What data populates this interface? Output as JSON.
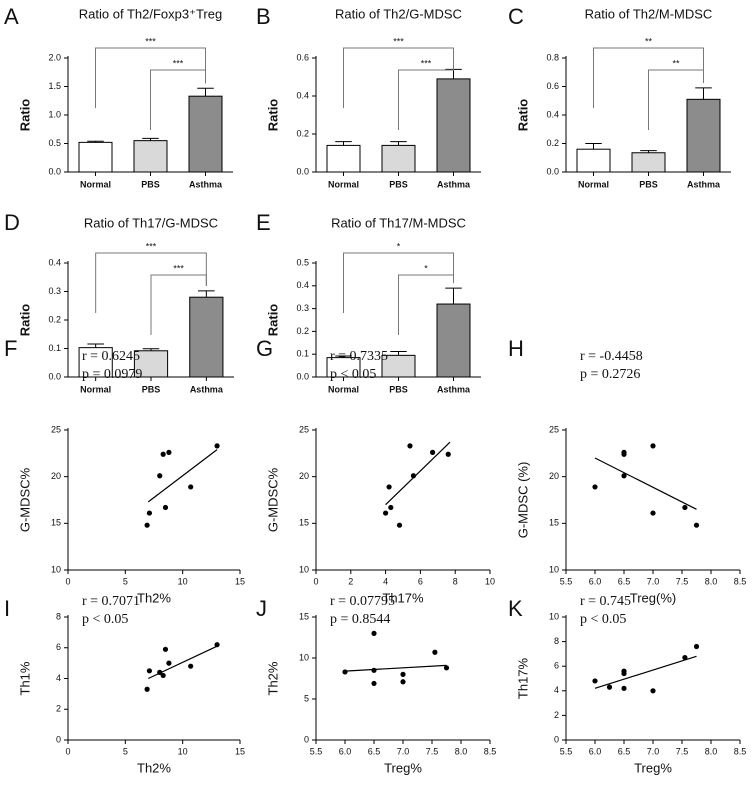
{
  "chart_data": [
    {
      "type": "bar",
      "panel": "A",
      "title": "Ratio of Th2/Foxp3⁺Treg",
      "ylabel": "Ratio",
      "categories": [
        "Normal",
        "PBS",
        "Asthma"
      ],
      "values": [
        0.52,
        0.55,
        1.33
      ],
      "errors": [
        0.02,
        0.04,
        0.14
      ],
      "colors": [
        "#ffffff",
        "#d9d9d9",
        "#8c8c8c"
      ],
      "ylim": [
        0,
        2
      ],
      "yticks": [
        {
          "value": 0,
          "label": "0.0"
        },
        0.5,
        {
          "value": 1,
          "label": "1.0"
        },
        1.5,
        {
          "value": 2,
          "label": "2.0"
        }
      ],
      "significance": [
        {
          "from": 0,
          "to": 2,
          "label": "***"
        },
        {
          "from": 1,
          "to": 2,
          "label": "***"
        }
      ]
    },
    {
      "type": "bar",
      "panel": "B",
      "title": "Ratio of Th2/G-MDSC",
      "ylabel": "Ratio",
      "categories": [
        "Normal",
        "PBS",
        "Asthma"
      ],
      "values": [
        0.14,
        0.14,
        0.49
      ],
      "errors": [
        0.02,
        0.02,
        0.05
      ],
      "colors": [
        "#ffffff",
        "#d9d9d9",
        "#8c8c8c"
      ],
      "ylim": [
        0,
        0.6
      ],
      "yticks": [
        {
          "value": 0,
          "label": "0.0"
        },
        0.2,
        0.4,
        0.6
      ],
      "significance": [
        {
          "from": 0,
          "to": 2,
          "label": "***"
        },
        {
          "from": 1,
          "to": 2,
          "label": "***"
        }
      ]
    },
    {
      "type": "bar",
      "panel": "C",
      "title": "Ratio of Th2/M-MDSC",
      "ylabel": "Ratio",
      "categories": [
        "Normal",
        "PBS",
        "Asthma"
      ],
      "values": [
        0.16,
        0.135,
        0.51
      ],
      "errors": [
        0.04,
        0.015,
        0.08
      ],
      "colors": [
        "#ffffff",
        "#d9d9d9",
        "#8c8c8c"
      ],
      "ylim": [
        0,
        0.8
      ],
      "yticks": [
        {
          "value": 0,
          "label": "0.0"
        },
        0.2,
        0.4,
        0.6,
        0.8
      ],
      "significance": [
        {
          "from": 0,
          "to": 2,
          "label": "**"
        },
        {
          "from": 1,
          "to": 2,
          "label": "**"
        }
      ]
    },
    {
      "type": "bar",
      "panel": "D",
      "title": "Ratio of Th17/G-MDSC",
      "ylabel": "Ratio",
      "categories": [
        "Normal",
        "PBS",
        "Asthma"
      ],
      "values": [
        0.103,
        0.092,
        0.28
      ],
      "errors": [
        0.013,
        0.007,
        0.022
      ],
      "colors": [
        "#ffffff",
        "#d9d9d9",
        "#8c8c8c"
      ],
      "ylim": [
        0,
        0.4
      ],
      "yticks": [
        {
          "value": 0,
          "label": "0.0"
        },
        0.1,
        0.2,
        0.3,
        0.4
      ],
      "significance": [
        {
          "from": 0,
          "to": 2,
          "label": "***"
        },
        {
          "from": 1,
          "to": 2,
          "label": "***"
        }
      ]
    },
    {
      "type": "bar",
      "panel": "E",
      "title": "Ratio of Th17/M-MDSC",
      "ylabel": "Ratio",
      "categories": [
        "Normal",
        "PBS",
        "Asthma"
      ],
      "values": [
        0.085,
        0.095,
        0.32
      ],
      "errors": [
        0.007,
        0.017,
        0.07
      ],
      "colors": [
        "#ffffff",
        "#d9d9d9",
        "#8c8c8c"
      ],
      "ylim": [
        0,
        0.5
      ],
      "yticks": [
        {
          "value": 0,
          "label": "0.0"
        },
        0.1,
        0.2,
        0.3,
        0.4,
        0.5
      ],
      "significance": [
        {
          "from": 0,
          "to": 2,
          "label": "*"
        },
        {
          "from": 1,
          "to": 2,
          "label": "*"
        }
      ]
    },
    {
      "type": "scatter",
      "panel": "F",
      "xlabel": "Th2%",
      "ylabel": "G-MDSC%",
      "annotations": [
        "r = 0.6245",
        "p = 0.0979"
      ],
      "x": [
        6.9,
        7.1,
        8.0,
        8.3,
        8.8,
        8.5,
        10.7,
        13.0
      ],
      "values": [
        14.8,
        16.1,
        20.1,
        22.4,
        22.6,
        16.7,
        18.9,
        23.3
      ],
      "fit": {
        "x": [
          7,
          13
        ],
        "values": [
          17.3,
          22.9
        ]
      },
      "color": "#000000",
      "xlim": [
        0,
        15
      ],
      "xticks": [
        0,
        5,
        10,
        15
      ],
      "ylim": [
        10,
        25
      ],
      "yticks": [
        10,
        15,
        20,
        25
      ]
    },
    {
      "type": "scatter",
      "panel": "G",
      "xlabel": "Th17%",
      "ylabel": "G-MDSC%",
      "annotations": [
        "r = 0.7335",
        "p < 0.05"
      ],
      "x": [
        4.0,
        4.3,
        4.2,
        4.8,
        5.4,
        5.6,
        6.7,
        7.6
      ],
      "values": [
        16.1,
        16.7,
        18.9,
        14.8,
        23.3,
        20.1,
        22.6,
        22.4
      ],
      "fit": {
        "x": [
          4.0,
          7.7
        ],
        "values": [
          17.0,
          23.7
        ]
      },
      "color": "#000000",
      "xlim": [
        0,
        10
      ],
      "xticks": [
        0,
        2,
        4,
        6,
        8,
        10
      ],
      "ylim": [
        10,
        25
      ],
      "yticks": [
        10,
        15,
        20,
        25
      ]
    },
    {
      "type": "scatter",
      "panel": "H",
      "xlabel": "Treg(%)",
      "ylabel": "G-MDSC (%)",
      "annotations": [
        "r = -0.4458",
        "p = 0.2726"
      ],
      "x": [
        6.0,
        6.5,
        6.5,
        6.5,
        7.0,
        7.0,
        7.55,
        7.75
      ],
      "values": [
        18.9,
        22.6,
        22.4,
        20.1,
        23.3,
        16.1,
        16.7,
        14.8
      ],
      "fit": {
        "x": [
          6.0,
          7.75
        ],
        "values": [
          22.0,
          16.5
        ]
      },
      "color": "#000000",
      "xlim": [
        5.5,
        8.5
      ],
      "xticks": [
        5.5,
        {
          "value": 6,
          "label": "6.0"
        },
        6.5,
        {
          "value": 7,
          "label": "7.0"
        },
        7.5,
        {
          "value": 8,
          "label": "8.0"
        },
        8.5
      ],
      "ylim": [
        10,
        25
      ],
      "yticks": [
        10,
        15,
        20,
        25
      ]
    },
    {
      "type": "scatter",
      "panel": "I",
      "xlabel": "Th2%",
      "ylabel": "Th1%",
      "annotations": [
        "r = 0.7071",
        "p < 0.05"
      ],
      "x": [
        6.9,
        7.1,
        8.0,
        8.3,
        8.5,
        8.8,
        10.7,
        13.0
      ],
      "values": [
        3.3,
        4.5,
        4.4,
        4.2,
        5.9,
        5.0,
        4.8,
        6.2
      ],
      "fit": {
        "x": [
          7,
          13
        ],
        "values": [
          4.0,
          6.1
        ]
      },
      "color": "#000000",
      "xlim": [
        0,
        15
      ],
      "xticks": [
        0,
        5,
        10,
        15
      ],
      "ylim": [
        0,
        8
      ],
      "yticks": [
        0,
        2,
        4,
        6,
        8
      ]
    },
    {
      "type": "scatter",
      "panel": "J",
      "xlabel": "Treg%",
      "ylabel": "Th2%",
      "annotations": [
        "r = 0.07795",
        "p = 0.8544"
      ],
      "x": [
        6.0,
        6.5,
        6.5,
        6.5,
        7.0,
        7.0,
        7.55,
        7.75
      ],
      "values": [
        8.3,
        13.0,
        8.5,
        6.9,
        8.0,
        7.1,
        10.7,
        8.8
      ],
      "fit": {
        "x": [
          6.0,
          7.75
        ],
        "values": [
          8.4,
          9.1
        ]
      },
      "color": "#000000",
      "xlim": [
        5.5,
        8.5
      ],
      "xticks": [
        5.5,
        {
          "value": 6,
          "label": "6.0"
        },
        6.5,
        {
          "value": 7,
          "label": "7.0"
        },
        7.5,
        {
          "value": 8,
          "label": "8.0"
        },
        8.5
      ],
      "ylim": [
        0,
        15
      ],
      "yticks": [
        0,
        5,
        10,
        15
      ]
    },
    {
      "type": "scatter",
      "panel": "K",
      "xlabel": "Treg%",
      "ylabel": "Th17%",
      "annotations": [
        "r = 0.745",
        "p < 0.05"
      ],
      "x": [
        6.0,
        6.25,
        6.5,
        6.5,
        6.5,
        7.0,
        7.55,
        7.75
      ],
      "values": [
        4.8,
        4.3,
        5.4,
        5.6,
        4.2,
        4.0,
        6.7,
        7.6
      ],
      "fit": {
        "x": [
          6.0,
          7.75
        ],
        "values": [
          4.2,
          6.8
        ]
      },
      "color": "#000000",
      "xlim": [
        5.5,
        8.5
      ],
      "xticks": [
        5.5,
        {
          "value": 6,
          "label": "6.0"
        },
        6.5,
        {
          "value": 7,
          "label": "7.0"
        },
        7.5,
        {
          "value": 8,
          "label": "8.0"
        },
        8.5
      ],
      "ylim": [
        0,
        10
      ],
      "yticks": [
        0,
        2,
        4,
        6,
        8,
        10
      ]
    }
  ]
}
